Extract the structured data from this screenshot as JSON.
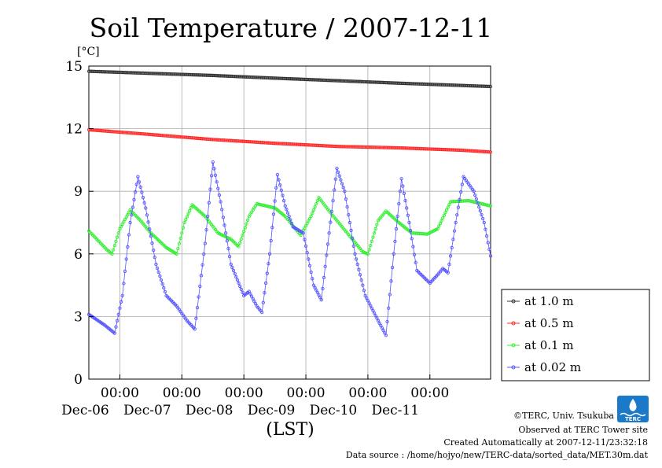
{
  "chart_data": {
    "type": "line",
    "title": "Soil Temperature / 2007-12-11",
    "ylabel": "[°C]",
    "xlabel": "(LST)",
    "ylim": [
      0,
      15
    ],
    "yticks": [
      0,
      3,
      6,
      9,
      12,
      15
    ],
    "xlim": [
      "2007-12-05T12:00",
      "2007-12-11T23:30"
    ],
    "xticks": [
      {
        "t": "2007-12-06T00:00",
        "time": "00:00",
        "date": "Dec-06"
      },
      {
        "t": "2007-12-07T00:00",
        "time": "00:00",
        "date": "Dec-07"
      },
      {
        "t": "2007-12-08T00:00",
        "time": "00:00",
        "date": "Dec-08"
      },
      {
        "t": "2007-12-09T00:00",
        "time": "00:00",
        "date": "Dec-09"
      },
      {
        "t": "2007-12-10T00:00",
        "time": "00:00",
        "date": "Dec-10"
      },
      {
        "t": "2007-12-11T00:00",
        "time": "00:00",
        "date": "Dec-11"
      }
    ],
    "grid": true,
    "legend_position": "right",
    "series": [
      {
        "name": "at 1.0 m",
        "color": "#333333",
        "points": [
          [
            "2007-12-05T12:00",
            14.75
          ],
          [
            "2007-12-06T12:00",
            14.65
          ],
          [
            "2007-12-07T12:00",
            14.55
          ],
          [
            "2007-12-08T12:00",
            14.42
          ],
          [
            "2007-12-09T12:00",
            14.3
          ],
          [
            "2007-12-10T12:00",
            14.18
          ],
          [
            "2007-12-11T23:30",
            14.02
          ]
        ]
      },
      {
        "name": "at 0.5 m",
        "color": "#ff2a2a",
        "points": [
          [
            "2007-12-05T12:00",
            11.95
          ],
          [
            "2007-12-06T12:00",
            11.72
          ],
          [
            "2007-12-07T12:00",
            11.48
          ],
          [
            "2007-12-08T12:00",
            11.3
          ],
          [
            "2007-12-09T12:00",
            11.15
          ],
          [
            "2007-12-10T12:00",
            11.08
          ],
          [
            "2007-12-11T12:00",
            10.97
          ],
          [
            "2007-12-11T23:30",
            10.88
          ]
        ]
      },
      {
        "name": "at 0.1 m",
        "color": "#33ee33",
        "points": [
          [
            "2007-12-05T12:00",
            7.1
          ],
          [
            "2007-12-05T19:00",
            6.2
          ],
          [
            "2007-12-05T21:00",
            6.0
          ],
          [
            "2007-12-06T00:00",
            7.2
          ],
          [
            "2007-12-06T04:00",
            8.1
          ],
          [
            "2007-12-06T08:00",
            7.6
          ],
          [
            "2007-12-06T12:00",
            7.0
          ],
          [
            "2007-12-06T18:00",
            6.3
          ],
          [
            "2007-12-06T22:00",
            6.0
          ],
          [
            "2007-12-07T01:00",
            7.5
          ],
          [
            "2007-12-07T04:00",
            8.35
          ],
          [
            "2007-12-07T09:00",
            7.8
          ],
          [
            "2007-12-07T14:00",
            7.0
          ],
          [
            "2007-12-07T19:00",
            6.7
          ],
          [
            "2007-12-07T22:00",
            6.35
          ],
          [
            "2007-12-08T02:00",
            7.8
          ],
          [
            "2007-12-08T05:00",
            8.4
          ],
          [
            "2007-12-08T12:00",
            8.2
          ],
          [
            "2007-12-08T16:00",
            7.8
          ],
          [
            "2007-12-08T22:00",
            6.9
          ],
          [
            "2007-12-09T02:00",
            7.8
          ],
          [
            "2007-12-09T05:00",
            8.7
          ],
          [
            "2007-12-09T10:00",
            7.9
          ],
          [
            "2007-12-09T16:00",
            7.0
          ],
          [
            "2007-12-09T22:00",
            6.1
          ],
          [
            "2007-12-10T00:00",
            6.0
          ],
          [
            "2007-12-10T04:00",
            7.6
          ],
          [
            "2007-12-10T07:00",
            8.05
          ],
          [
            "2007-12-10T12:00",
            7.5
          ],
          [
            "2007-12-10T17:00",
            7.0
          ],
          [
            "2007-12-10T23:00",
            6.95
          ],
          [
            "2007-12-11T03:00",
            7.2
          ],
          [
            "2007-12-11T08:00",
            8.5
          ],
          [
            "2007-12-11T15:00",
            8.55
          ],
          [
            "2007-12-11T23:30",
            8.3
          ]
        ]
      },
      {
        "name": "at 0.02 m",
        "color": "#5555ff",
        "points": [
          [
            "2007-12-05T12:00",
            3.1
          ],
          [
            "2007-12-05T18:00",
            2.6
          ],
          [
            "2007-12-05T22:00",
            2.2
          ],
          [
            "2007-12-06T01:00",
            4.0
          ],
          [
            "2007-12-06T04:00",
            7.5
          ],
          [
            "2007-12-06T07:00",
            9.7
          ],
          [
            "2007-12-06T10:00",
            8.2
          ],
          [
            "2007-12-06T14:00",
            5.5
          ],
          [
            "2007-12-06T18:00",
            4.0
          ],
          [
            "2007-12-06T22:00",
            3.5
          ],
          [
            "2007-12-07T02:00",
            2.8
          ],
          [
            "2007-12-07T05:00",
            2.4
          ],
          [
            "2007-12-07T09:00",
            6.5
          ],
          [
            "2007-12-07T12:00",
            10.4
          ],
          [
            "2007-12-07T15:00",
            8.5
          ],
          [
            "2007-12-07T19:00",
            5.5
          ],
          [
            "2007-12-08T00:00",
            4.0
          ],
          [
            "2007-12-08T02:00",
            4.2
          ],
          [
            "2007-12-08T05:00",
            3.5
          ],
          [
            "2007-12-08T07:00",
            3.2
          ],
          [
            "2007-12-08T10:00",
            6.0
          ],
          [
            "2007-12-08T13:00",
            9.8
          ],
          [
            "2007-12-08T16:00",
            8.3
          ],
          [
            "2007-12-08T19:00",
            7.3
          ],
          [
            "2007-12-08T23:00",
            7.0
          ],
          [
            "2007-12-09T03:00",
            4.5
          ],
          [
            "2007-12-09T06:00",
            3.8
          ],
          [
            "2007-12-09T09:00",
            7.0
          ],
          [
            "2007-12-09T12:00",
            10.1
          ],
          [
            "2007-12-09T15:00",
            9.0
          ],
          [
            "2007-12-09T19:00",
            6.0
          ],
          [
            "2007-12-09T23:00",
            4.0
          ],
          [
            "2007-12-10T04:00",
            2.8
          ],
          [
            "2007-12-10T07:00",
            2.1
          ],
          [
            "2007-12-10T10:00",
            6.0
          ],
          [
            "2007-12-10T13:00",
            9.6
          ],
          [
            "2007-12-10T16:00",
            7.5
          ],
          [
            "2007-12-10T19:00",
            5.2
          ],
          [
            "2007-12-11T00:00",
            4.6
          ],
          [
            "2007-12-11T03:00",
            5.0
          ],
          [
            "2007-12-11T05:00",
            5.3
          ],
          [
            "2007-12-11T07:00",
            5.1
          ],
          [
            "2007-12-11T10:00",
            7.5
          ],
          [
            "2007-12-11T13:00",
            9.7
          ],
          [
            "2007-12-11T17:00",
            9.0
          ],
          [
            "2007-12-11T21:00",
            7.5
          ],
          [
            "2007-12-11T23:30",
            5.9
          ]
        ]
      }
    ]
  },
  "footer": {
    "copyright": "©TERC, Univ. Tsukuba",
    "observed": "Observed at TERC Tower site",
    "created": "Created Automatically at 2007-12-11/23:32:18",
    "source": "Data source : /home/hojyo/new/TERC-data/sorted_data/MET.30m.dat"
  },
  "logo": {
    "text": "TERC",
    "color": "#1a7ac9"
  }
}
